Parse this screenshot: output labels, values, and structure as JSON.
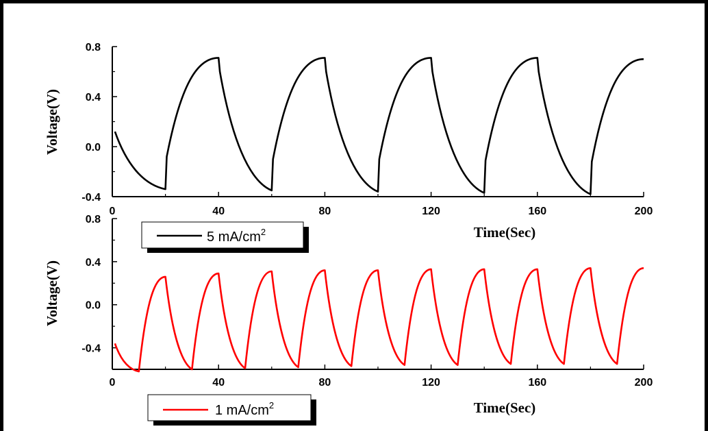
{
  "chart_data": [
    {
      "type": "line",
      "xlabel": "Time(Sec)",
      "ylabel": "Voltage(V)",
      "xlim": [
        0,
        200
      ],
      "ylim": [
        -0.4,
        0.8
      ],
      "xticks": [
        "0",
        "40",
        "80",
        "120",
        "160",
        "200"
      ],
      "yticks": [
        "-0.4",
        "0.0",
        "0.4",
        "0.8"
      ],
      "legend": "bottom-left",
      "series": [
        {
          "name": "5 mA/cm²",
          "color": "#000000",
          "x": [
            1,
            20,
            20.5,
            40,
            40.5,
            60,
            60.5,
            80,
            80.5,
            100,
            100.5,
            120,
            120.5,
            140,
            140.5,
            160,
            160.5,
            180,
            180.5,
            200
          ],
          "y": [
            0.12,
            -0.34,
            -0.08,
            0.71,
            0.6,
            -0.35,
            -0.1,
            0.71,
            0.6,
            -0.36,
            -0.1,
            0.71,
            0.6,
            -0.37,
            -0.11,
            0.71,
            0.6,
            -0.38,
            -0.12,
            0.7
          ]
        }
      ]
    },
    {
      "type": "line",
      "xlabel": "Time(Sec)",
      "ylabel": "Voltage(V)",
      "xlim": [
        0,
        200
      ],
      "ylim": [
        -0.6,
        0.8
      ],
      "xticks": [
        "0",
        "40",
        "80",
        "120",
        "160",
        "200"
      ],
      "yticks": [
        "-0.4",
        "0.0",
        "0.4",
        "0.8"
      ],
      "legend": "bottom-left",
      "series": [
        {
          "name": "1 mA/cm²",
          "color": "#ff0000",
          "x": [
            1,
            10,
            20,
            30,
            40,
            50,
            60,
            70,
            80,
            90,
            100,
            110,
            120,
            130,
            140,
            150,
            160,
            170,
            180,
            190,
            200
          ],
          "y": [
            -0.36,
            -0.62,
            0.26,
            -0.6,
            0.29,
            -0.59,
            0.31,
            -0.58,
            0.32,
            -0.57,
            0.32,
            -0.56,
            0.33,
            -0.56,
            0.33,
            -0.55,
            0.33,
            -0.55,
            0.34,
            -0.55,
            0.34
          ]
        }
      ]
    }
  ],
  "legend": {
    "top": {
      "text": "5 mA/cm",
      "sup": "2",
      "color": "#000000"
    },
    "bottom": {
      "text": "1 mA/cm",
      "sup": "2",
      "color": "#ff0000"
    }
  }
}
